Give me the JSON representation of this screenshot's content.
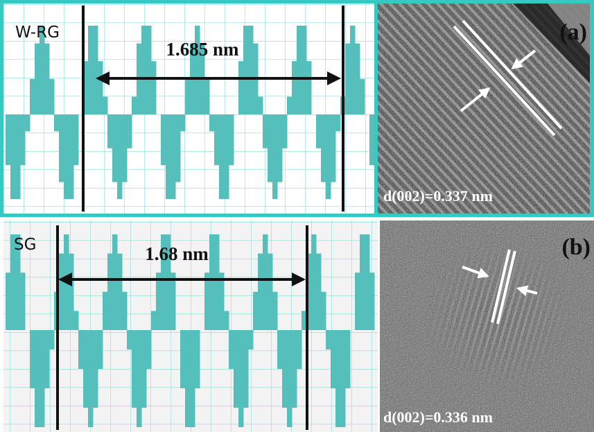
{
  "panels": [
    {
      "sample": "W-RG",
      "spacing": "1.685 nm",
      "label": "(a)",
      "d_spacing": "d(002)=0.337 nm"
    },
    {
      "sample": "SG",
      "spacing": "1.68 nm",
      "label": "(b)",
      "d_spacing": "d(002)=0.336 nm"
    }
  ]
}
